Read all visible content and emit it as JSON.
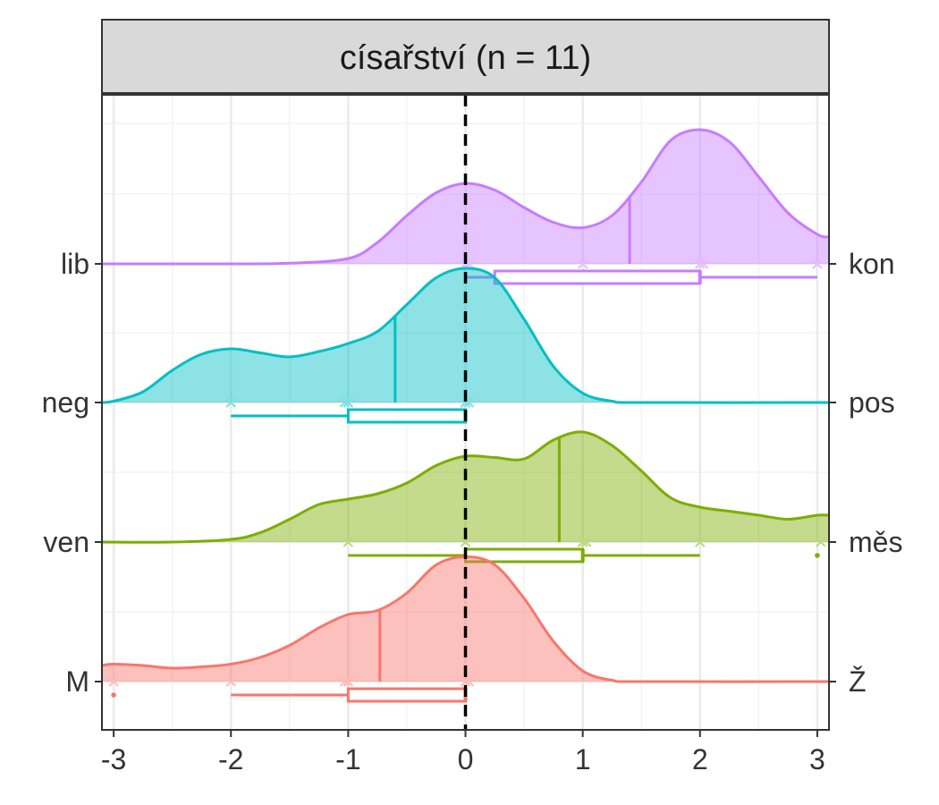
{
  "chart_data": {
    "type": "density-ridgeline",
    "title": "císařství (n = 11)",
    "xlabel": "",
    "ylabel": "",
    "xlim": [
      -3.1,
      3.1
    ],
    "x_ticks": [
      -3,
      -2,
      -1,
      0,
      1,
      2,
      3
    ],
    "x_tick_labels": [
      "-3",
      "-2",
      "-1",
      "0",
      "1",
      "2",
      "3"
    ],
    "grid": true,
    "reference_line": {
      "x": 0,
      "style": "dashed"
    },
    "rows": [
      {
        "left_label": "lib",
        "right_label": "kon",
        "color": "#C77CFF",
        "density": {
          "x": [
            -3.1,
            -2.0,
            -1.5,
            -1.0,
            -0.75,
            -0.5,
            -0.25,
            0,
            0.25,
            0.5,
            0.75,
            1.0,
            1.25,
            1.5,
            1.75,
            2.0,
            2.25,
            2.5,
            2.75,
            3.0,
            3.1
          ],
          "y": [
            0,
            0,
            0.005,
            0.04,
            0.16,
            0.36,
            0.53,
            0.6,
            0.55,
            0.42,
            0.31,
            0.27,
            0.36,
            0.61,
            0.92,
            1.0,
            0.91,
            0.65,
            0.38,
            0.22,
            0.2
          ]
        },
        "mean": 1.4,
        "points": [
          0,
          0,
          0.03,
          1,
          2,
          2,
          2.03,
          3
        ],
        "box": {
          "whisker_low": 0,
          "q1": 0.25,
          "median": 2,
          "q3": 2,
          "whisker_high": 3
        },
        "outliers": []
      },
      {
        "left_label": "neg",
        "right_label": "pos",
        "color": "#00BFC4",
        "density": {
          "x": [
            -3.1,
            -3.0,
            -2.75,
            -2.5,
            -2.25,
            -2.0,
            -1.75,
            -1.5,
            -1.25,
            -1.0,
            -0.75,
            -0.5,
            -0.25,
            0,
            0.25,
            0.5,
            0.75,
            1.0,
            1.25,
            1.5,
            3.1
          ],
          "y": [
            0,
            0.01,
            0.08,
            0.24,
            0.36,
            0.4,
            0.37,
            0.34,
            0.38,
            0.44,
            0.53,
            0.73,
            0.93,
            1.0,
            0.93,
            0.62,
            0.27,
            0.07,
            0.01,
            0,
            0
          ]
        },
        "mean": -0.6,
        "points": [
          -2,
          -2,
          -1.03,
          -1,
          -1,
          0,
          0,
          0,
          0.03
        ],
        "box": {
          "whisker_low": -2,
          "q1": -1,
          "median": 0,
          "q3": 0,
          "whisker_high": 0
        },
        "outliers": []
      },
      {
        "left_label": "ven",
        "right_label": "měs",
        "color": "#7CAE00",
        "density": {
          "x": [
            -3.1,
            -2.5,
            -2.0,
            -1.75,
            -1.5,
            -1.25,
            -1.0,
            -0.75,
            -0.5,
            -0.25,
            0,
            0.25,
            0.5,
            0.75,
            1.0,
            1.25,
            1.5,
            1.75,
            2.0,
            2.25,
            2.5,
            2.75,
            3.0,
            3.1
          ],
          "y": [
            0,
            0,
            0.02,
            0.07,
            0.17,
            0.28,
            0.32,
            0.36,
            0.44,
            0.57,
            0.64,
            0.63,
            0.62,
            0.76,
            0.82,
            0.72,
            0.53,
            0.33,
            0.26,
            0.23,
            0.2,
            0.17,
            0.2,
            0.2
          ]
        },
        "mean": 0.8,
        "points": [
          -1,
          0,
          1,
          1,
          1.03,
          2,
          3.03
        ],
        "box": {
          "whisker_low": -1,
          "q1": 0,
          "median": 1,
          "q3": 1,
          "whisker_high": 2
        },
        "outliers": [
          3
        ]
      },
      {
        "left_label": "M",
        "right_label": "Ž",
        "color": "#F8766D",
        "density": {
          "x": [
            -3.1,
            -3.0,
            -2.75,
            -2.5,
            -2.25,
            -2.0,
            -1.75,
            -1.5,
            -1.25,
            -1.0,
            -0.75,
            -0.5,
            -0.25,
            0,
            0.25,
            0.5,
            0.75,
            1.0,
            1.25,
            1.5,
            3.1
          ],
          "y": [
            0.12,
            0.13,
            0.12,
            0.1,
            0.11,
            0.13,
            0.18,
            0.27,
            0.4,
            0.5,
            0.53,
            0.66,
            0.87,
            0.93,
            0.87,
            0.62,
            0.3,
            0.08,
            0.01,
            0,
            0
          ]
        },
        "mean": -0.73,
        "points": [
          -3,
          -2,
          -1.03,
          -1,
          -1,
          0,
          0,
          0.03
        ],
        "box": {
          "whisker_low": -2,
          "q1": -1,
          "median": 0,
          "q3": 0,
          "whisker_high": 0
        },
        "outliers": [
          -3
        ]
      }
    ]
  }
}
